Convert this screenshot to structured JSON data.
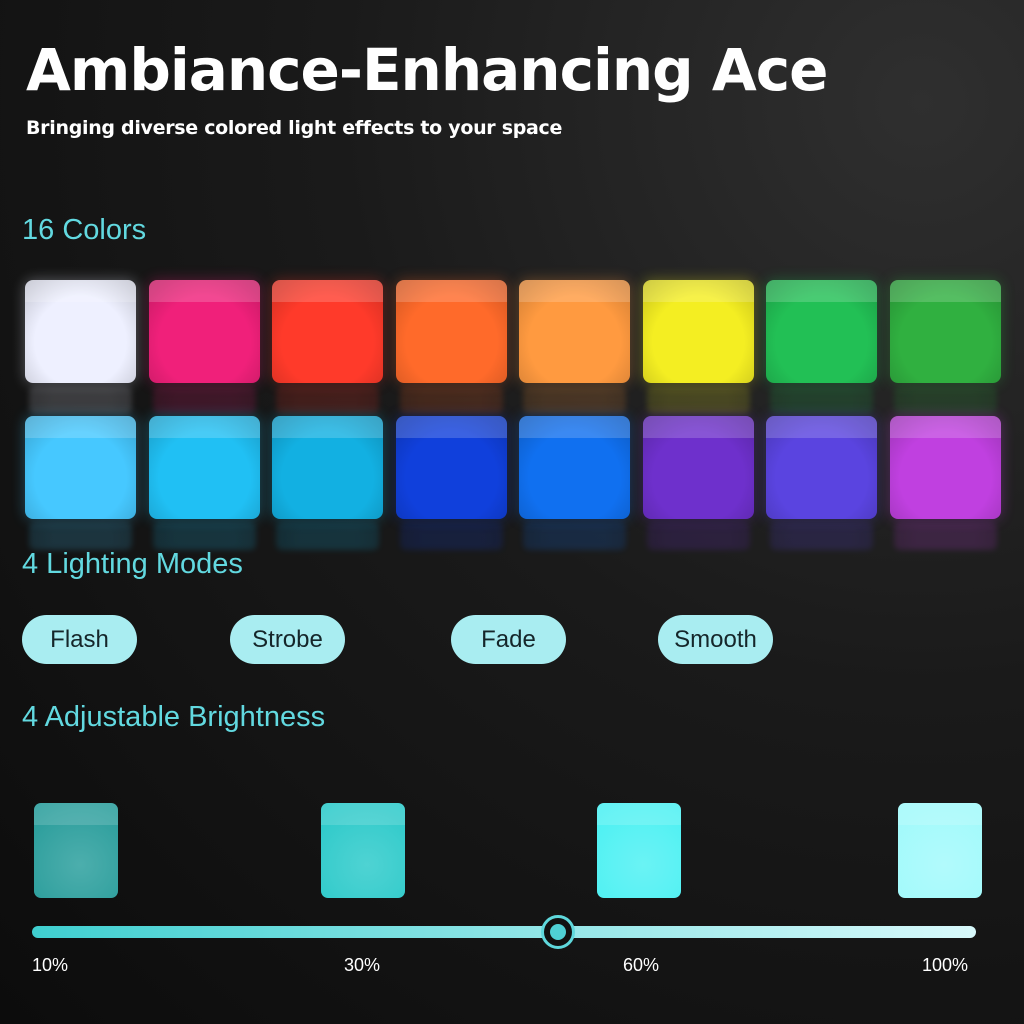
{
  "title": "Ambiance-Enhancing Ace",
  "subtitle": "Bringing diverse colored light effects to your space",
  "colors": {
    "heading": "16 Colors",
    "swatches": [
      "#eef0ff",
      "#f0207a",
      "#ff3a2a",
      "#ff6a2a",
      "#ff9a40",
      "#f4ee22",
      "#22c055",
      "#30b040",
      "#46c8ff",
      "#20c0f4",
      "#12b0e2",
      "#1040dc",
      "#1070f0",
      "#6e30cc",
      "#5a44e0",
      "#c040e0"
    ]
  },
  "modes": {
    "heading": "4 Lighting Modes",
    "items": [
      "Flash",
      "Strobe",
      "Fade",
      "Smooth"
    ]
  },
  "brightness": {
    "heading": "4 Adjustable Brightness",
    "levels": [
      "10%",
      "30%",
      "60%",
      "100%"
    ],
    "cube_colors": [
      "#1f9a98",
      "#22c8c8",
      "#45f0f2",
      "#9ef9fb"
    ],
    "current": "60%",
    "slider_value_percent": 60
  }
}
